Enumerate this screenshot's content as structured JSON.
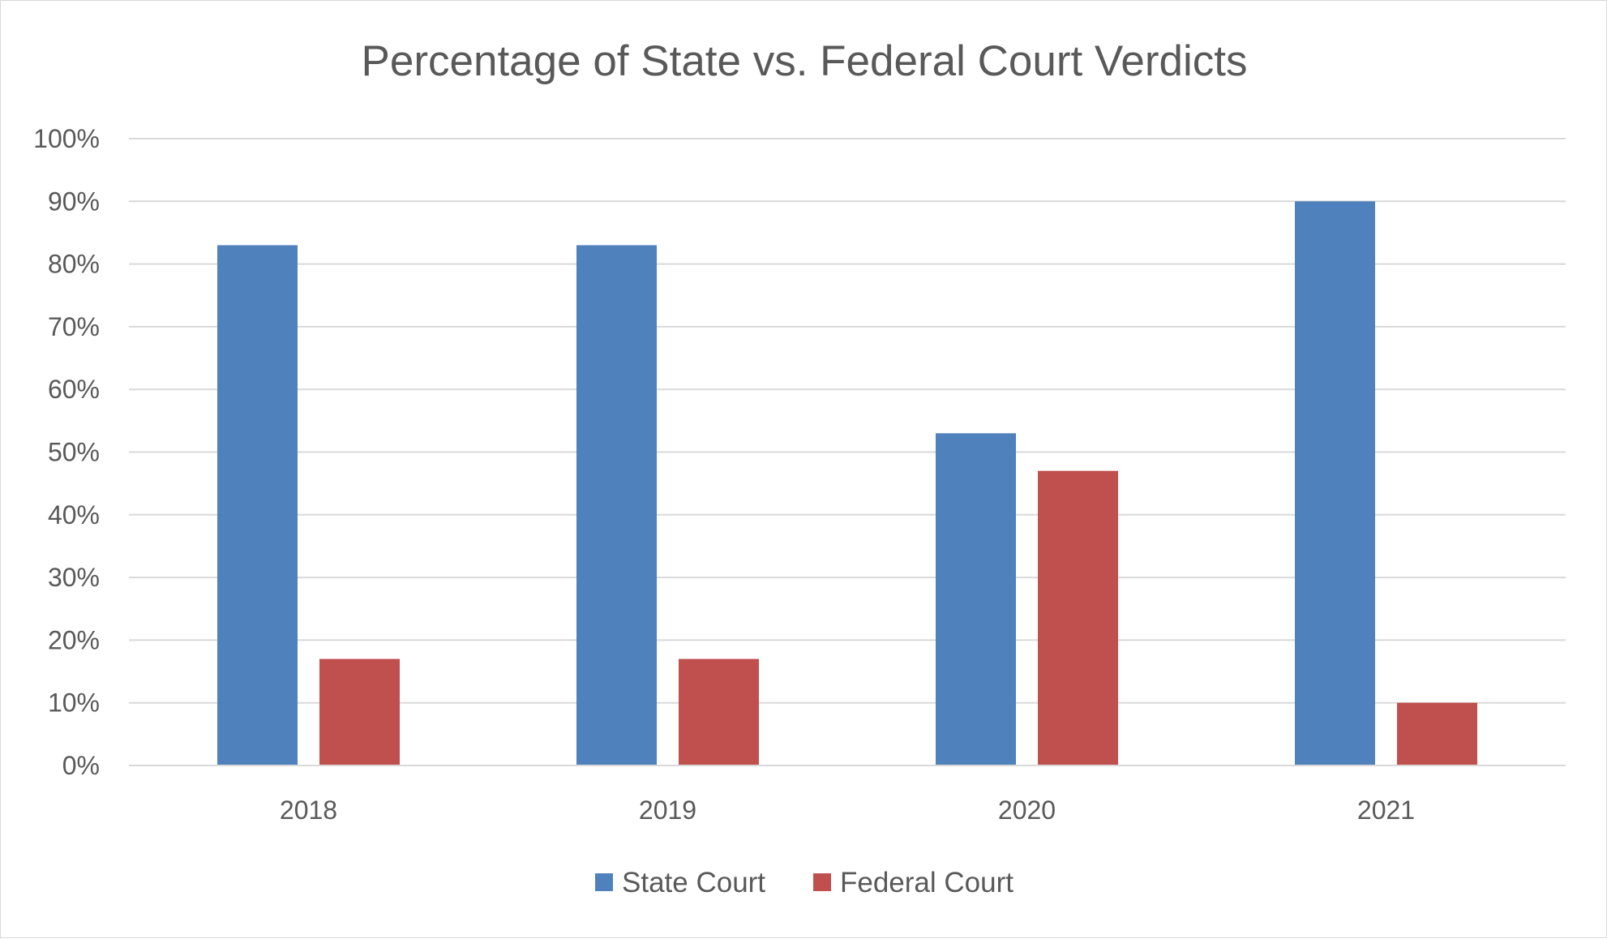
{
  "chart_data": {
    "type": "bar",
    "title": "Percentage of State vs. Federal Court Verdicts",
    "xlabel": "",
    "ylabel": "",
    "categories": [
      "2018",
      "2019",
      "2020",
      "2021"
    ],
    "series": [
      {
        "name": "State Court",
        "values": [
          83,
          83,
          53,
          90
        ],
        "color": "#4f81bd"
      },
      {
        "name": "Federal Court",
        "values": [
          17,
          17,
          47,
          10
        ],
        "color": "#c0504d"
      }
    ],
    "ylim": [
      0,
      100
    ],
    "yticks": [
      0,
      10,
      20,
      30,
      40,
      50,
      60,
      70,
      80,
      90,
      100
    ],
    "ytick_labels": [
      "0%",
      "10%",
      "20%",
      "30%",
      "40%",
      "50%",
      "60%",
      "70%",
      "80%",
      "90%",
      "100%"
    ],
    "grid": true,
    "legend_position": "bottom"
  }
}
